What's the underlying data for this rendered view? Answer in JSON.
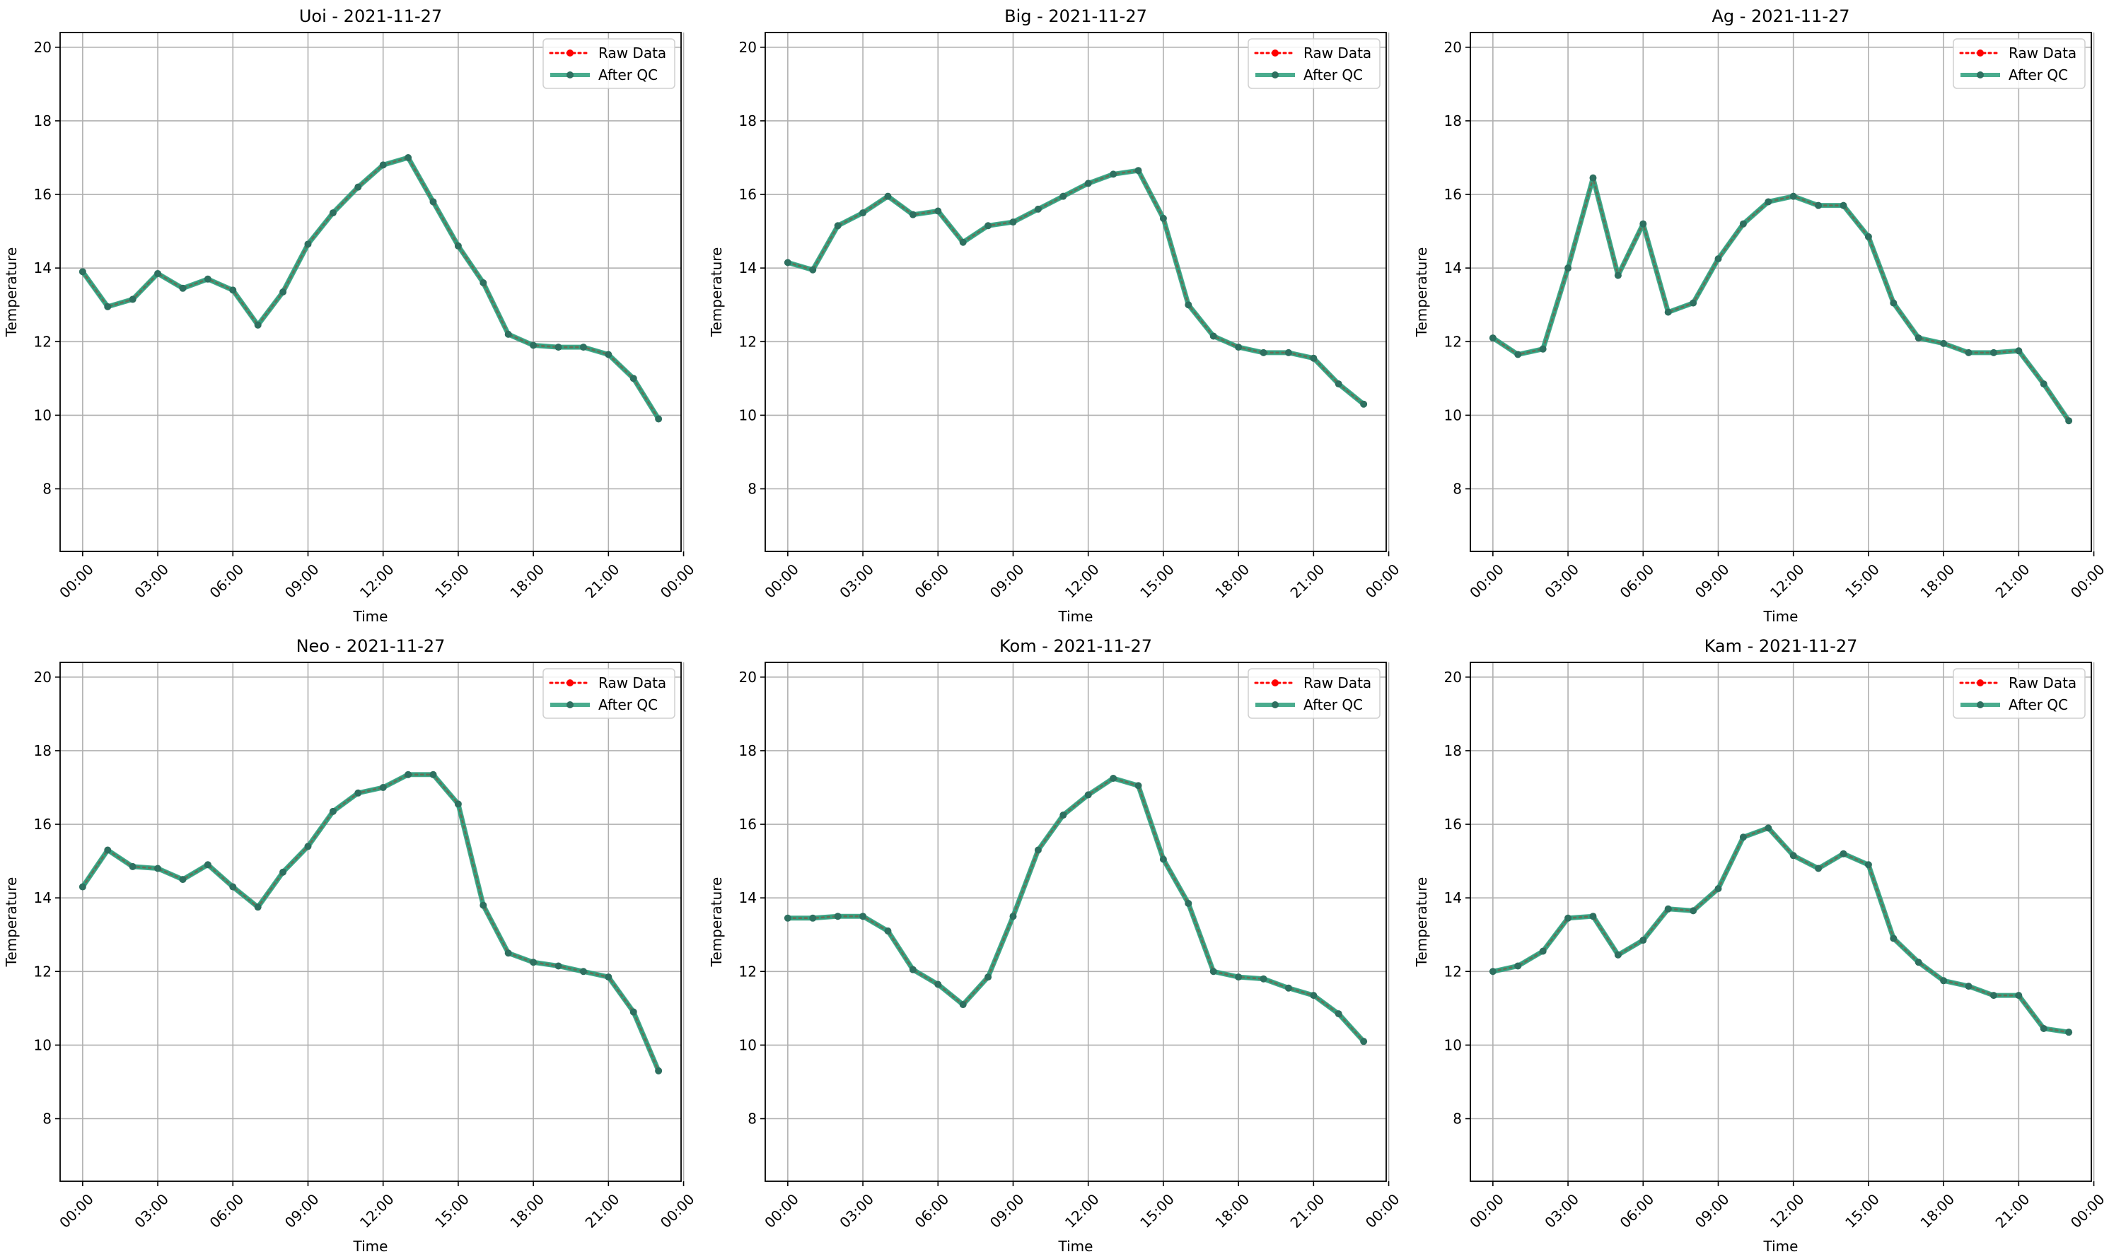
{
  "colors": {
    "raw": "#ff0000",
    "qc": "#2a9d7a",
    "qc_marker": "#2e7060",
    "grid": "#b0b0b0",
    "axis": "#000000"
  },
  "legend": {
    "raw": "Raw Data",
    "qc": "After QC"
  },
  "chart_data": [
    {
      "type": "line",
      "title": "Uoi - 2021-11-27",
      "xlabel": "Time",
      "ylabel": "Temperature",
      "ylim": [
        6.3,
        20.4
      ],
      "xlim": [
        -0.9,
        23.9
      ],
      "yticks": [
        "8",
        "10",
        "12",
        "14",
        "16",
        "18",
        "20"
      ],
      "xticks": [
        "00:00",
        "03:00",
        "06:00",
        "09:00",
        "12:00",
        "15:00",
        "18:00",
        "21:00",
        "00:00"
      ],
      "grid": true,
      "legend_position": "top-right",
      "x": [
        "00:00",
        "01:00",
        "02:00",
        "03:00",
        "04:00",
        "05:00",
        "06:00",
        "07:00",
        "08:00",
        "09:00",
        "10:00",
        "11:00",
        "12:00",
        "13:00",
        "14:00",
        "15:00",
        "16:00",
        "17:00",
        "18:00",
        "19:00",
        "20:00",
        "21:00",
        "22:00",
        "23:00"
      ],
      "series": [
        {
          "name": "Raw Data",
          "values": [
            13.9,
            12.95,
            13.15,
            13.85,
            13.45,
            13.7,
            13.4,
            12.45,
            13.35,
            14.65,
            15.5,
            16.2,
            16.8,
            17.0,
            15.8,
            14.6,
            13.6,
            12.2,
            11.9,
            11.85,
            11.85,
            11.65,
            11.0,
            9.9
          ]
        },
        {
          "name": "After QC",
          "values": [
            13.9,
            12.95,
            13.15,
            13.85,
            13.45,
            13.7,
            13.4,
            12.45,
            13.35,
            14.65,
            15.5,
            16.2,
            16.8,
            17.0,
            15.8,
            14.6,
            13.6,
            12.2,
            11.9,
            11.85,
            11.85,
            11.65,
            11.0,
            9.9
          ]
        }
      ]
    },
    {
      "type": "line",
      "title": "Big - 2021-11-27",
      "xlabel": "Time",
      "ylabel": "Temperature",
      "ylim": [
        6.3,
        20.4
      ],
      "xlim": [
        -0.9,
        23.9
      ],
      "yticks": [
        "8",
        "10",
        "12",
        "14",
        "16",
        "18",
        "20"
      ],
      "xticks": [
        "00:00",
        "03:00",
        "06:00",
        "09:00",
        "12:00",
        "15:00",
        "18:00",
        "21:00",
        "00:00"
      ],
      "grid": true,
      "legend_position": "top-right",
      "x": [
        "00:00",
        "01:00",
        "02:00",
        "03:00",
        "04:00",
        "05:00",
        "06:00",
        "07:00",
        "08:00",
        "09:00",
        "10:00",
        "11:00",
        "12:00",
        "13:00",
        "14:00",
        "15:00",
        "16:00",
        "17:00",
        "18:00",
        "19:00",
        "20:00",
        "21:00",
        "22:00",
        "23:00"
      ],
      "series": [
        {
          "name": "Raw Data",
          "values": [
            14.15,
            13.95,
            15.15,
            15.5,
            15.95,
            15.45,
            15.55,
            14.7,
            15.15,
            15.25,
            15.6,
            15.95,
            16.3,
            16.55,
            16.65,
            15.35,
            13.0,
            12.15,
            11.85,
            11.7,
            11.7,
            11.55,
            10.85,
            10.3
          ]
        },
        {
          "name": "After QC",
          "values": [
            14.15,
            13.95,
            15.15,
            15.5,
            15.95,
            15.45,
            15.55,
            14.7,
            15.15,
            15.25,
            15.6,
            15.95,
            16.3,
            16.55,
            16.65,
            15.35,
            13.0,
            12.15,
            11.85,
            11.7,
            11.7,
            11.55,
            10.85,
            10.3
          ]
        }
      ]
    },
    {
      "type": "line",
      "title": "Ag - 2021-11-27",
      "xlabel": "Time",
      "ylabel": "Temperature",
      "ylim": [
        6.3,
        20.4
      ],
      "xlim": [
        -0.9,
        23.9
      ],
      "yticks": [
        "8",
        "10",
        "12",
        "14",
        "16",
        "18",
        "20"
      ],
      "xticks": [
        "00:00",
        "03:00",
        "06:00",
        "09:00",
        "12:00",
        "15:00",
        "18:00",
        "21:00",
        "00:00"
      ],
      "grid": true,
      "legend_position": "top-right",
      "x": [
        "00:00",
        "01:00",
        "02:00",
        "03:00",
        "04:00",
        "05:00",
        "06:00",
        "07:00",
        "08:00",
        "09:00",
        "10:00",
        "11:00",
        "12:00",
        "13:00",
        "14:00",
        "15:00",
        "16:00",
        "17:00",
        "18:00",
        "19:00",
        "20:00",
        "21:00",
        "22:00",
        "23:00"
      ],
      "series": [
        {
          "name": "Raw Data",
          "values": [
            12.1,
            11.65,
            11.8,
            14.0,
            16.45,
            13.8,
            15.2,
            12.8,
            13.05,
            14.25,
            15.2,
            15.8,
            15.95,
            15.7,
            15.7,
            14.85,
            13.05,
            12.1,
            11.95,
            11.7,
            11.7,
            11.75,
            10.85,
            9.85
          ]
        },
        {
          "name": "After QC",
          "values": [
            12.1,
            11.65,
            11.8,
            14.0,
            16.45,
            13.8,
            15.2,
            12.8,
            13.05,
            14.25,
            15.2,
            15.8,
            15.95,
            15.7,
            15.7,
            14.85,
            13.05,
            12.1,
            11.95,
            11.7,
            11.7,
            11.75,
            10.85,
            9.85
          ]
        }
      ]
    },
    {
      "type": "line",
      "title": "Neo - 2021-11-27",
      "xlabel": "Time",
      "ylabel": "Temperature",
      "ylim": [
        6.3,
        20.4
      ],
      "xlim": [
        -0.9,
        23.9
      ],
      "yticks": [
        "8",
        "10",
        "12",
        "14",
        "16",
        "18",
        "20"
      ],
      "xticks": [
        "00:00",
        "03:00",
        "06:00",
        "09:00",
        "12:00",
        "15:00",
        "18:00",
        "21:00",
        "00:00"
      ],
      "grid": true,
      "legend_position": "top-right",
      "x": [
        "00:00",
        "01:00",
        "02:00",
        "03:00",
        "04:00",
        "05:00",
        "06:00",
        "07:00",
        "08:00",
        "09:00",
        "10:00",
        "11:00",
        "12:00",
        "13:00",
        "14:00",
        "15:00",
        "16:00",
        "17:00",
        "18:00",
        "19:00",
        "20:00",
        "21:00",
        "22:00",
        "23:00"
      ],
      "series": [
        {
          "name": "Raw Data",
          "values": [
            14.3,
            15.3,
            14.85,
            14.8,
            14.5,
            14.9,
            14.3,
            13.75,
            14.7,
            15.4,
            16.35,
            16.85,
            17.0,
            17.35,
            17.35,
            16.55,
            13.8,
            12.5,
            12.25,
            12.15,
            12.0,
            11.85,
            10.9,
            9.3
          ]
        },
        {
          "name": "After QC",
          "values": [
            14.3,
            15.3,
            14.85,
            14.8,
            14.5,
            14.9,
            14.3,
            13.75,
            14.7,
            15.4,
            16.35,
            16.85,
            17.0,
            17.35,
            17.35,
            16.55,
            13.8,
            12.5,
            12.25,
            12.15,
            12.0,
            11.85,
            10.9,
            9.3
          ]
        }
      ]
    },
    {
      "type": "line",
      "title": "Kom - 2021-11-27",
      "xlabel": "Time",
      "ylabel": "Temperature",
      "ylim": [
        6.3,
        20.4
      ],
      "xlim": [
        -0.9,
        23.9
      ],
      "yticks": [
        "8",
        "10",
        "12",
        "14",
        "16",
        "18",
        "20"
      ],
      "xticks": [
        "00:00",
        "03:00",
        "06:00",
        "09:00",
        "12:00",
        "15:00",
        "18:00",
        "21:00",
        "00:00"
      ],
      "grid": true,
      "legend_position": "top-right",
      "x": [
        "00:00",
        "01:00",
        "02:00",
        "03:00",
        "04:00",
        "05:00",
        "06:00",
        "07:00",
        "08:00",
        "09:00",
        "10:00",
        "11:00",
        "12:00",
        "13:00",
        "14:00",
        "15:00",
        "16:00",
        "17:00",
        "18:00",
        "19:00",
        "20:00",
        "21:00",
        "22:00",
        "23:00"
      ],
      "series": [
        {
          "name": "Raw Data",
          "values": [
            13.45,
            13.45,
            13.5,
            13.5,
            13.1,
            12.05,
            11.65,
            11.1,
            11.85,
            13.5,
            15.3,
            16.25,
            16.8,
            17.25,
            17.05,
            15.05,
            13.85,
            12.0,
            11.85,
            11.8,
            11.55,
            11.35,
            10.85,
            10.1
          ]
        },
        {
          "name": "After QC",
          "values": [
            13.45,
            13.45,
            13.5,
            13.5,
            13.1,
            12.05,
            11.65,
            11.1,
            11.85,
            13.5,
            15.3,
            16.25,
            16.8,
            17.25,
            17.05,
            15.05,
            13.85,
            12.0,
            11.85,
            11.8,
            11.55,
            11.35,
            10.85,
            10.1
          ]
        }
      ]
    },
    {
      "type": "line",
      "title": "Kam - 2021-11-27",
      "xlabel": "Time",
      "ylabel": "Temperature",
      "ylim": [
        6.3,
        20.4
      ],
      "xlim": [
        -0.9,
        23.9
      ],
      "yticks": [
        "8",
        "10",
        "12",
        "14",
        "16",
        "18",
        "20"
      ],
      "xticks": [
        "00:00",
        "03:00",
        "06:00",
        "09:00",
        "12:00",
        "15:00",
        "18:00",
        "21:00",
        "00:00"
      ],
      "grid": true,
      "legend_position": "top-right",
      "x": [
        "00:00",
        "01:00",
        "02:00",
        "03:00",
        "04:00",
        "05:00",
        "06:00",
        "07:00",
        "08:00",
        "09:00",
        "10:00",
        "11:00",
        "12:00",
        "13:00",
        "14:00",
        "15:00",
        "16:00",
        "17:00",
        "18:00",
        "19:00",
        "20:00",
        "21:00",
        "22:00",
        "23:00"
      ],
      "series": [
        {
          "name": "Raw Data",
          "values": [
            12.0,
            12.15,
            12.55,
            13.45,
            13.5,
            12.45,
            12.85,
            13.7,
            13.65,
            14.25,
            15.65,
            15.9,
            15.15,
            14.8,
            15.2,
            14.9,
            12.9,
            12.25,
            11.75,
            11.6,
            11.35,
            11.35,
            10.45,
            10.35
          ]
        },
        {
          "name": "After QC",
          "values": [
            12.0,
            12.15,
            12.55,
            13.45,
            13.5,
            12.45,
            12.85,
            13.7,
            13.65,
            14.25,
            15.65,
            15.9,
            15.15,
            14.8,
            15.2,
            14.9,
            12.9,
            12.25,
            11.75,
            11.6,
            11.35,
            11.35,
            10.45,
            10.35
          ]
        }
      ]
    }
  ]
}
